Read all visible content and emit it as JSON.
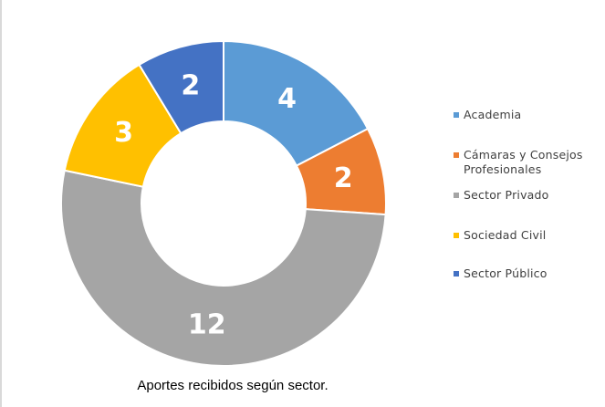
{
  "chart_data": {
    "type": "pie",
    "variant": "donut",
    "title": "",
    "categories": [
      "Academia",
      "Cámaras y Consejos Profesionales",
      "Sector Privado",
      "Sociedad Civil",
      "Sector Público"
    ],
    "values": [
      4,
      2,
      12,
      3,
      2
    ],
    "colors": [
      "#5B9BD5",
      "#ED7D31",
      "#A5A5A5",
      "#FFC000",
      "#4472C4"
    ],
    "legend_position": "right",
    "data_labels": [
      "4",
      "2",
      "12",
      "3",
      "2"
    ]
  },
  "legend": {
    "items": [
      {
        "label": "Academia",
        "color": "#5B9BD5"
      },
      {
        "label": "Cámaras y Consejos Profesionales",
        "color": "#ED7D31"
      },
      {
        "label": "Sector Privado",
        "color": "#A5A5A5"
      },
      {
        "label": "Sociedad Civil",
        "color": "#FFC000"
      },
      {
        "label": "Sector Público",
        "color": "#4472C4"
      }
    ]
  },
  "caption": "Aportes recibidos según sector."
}
